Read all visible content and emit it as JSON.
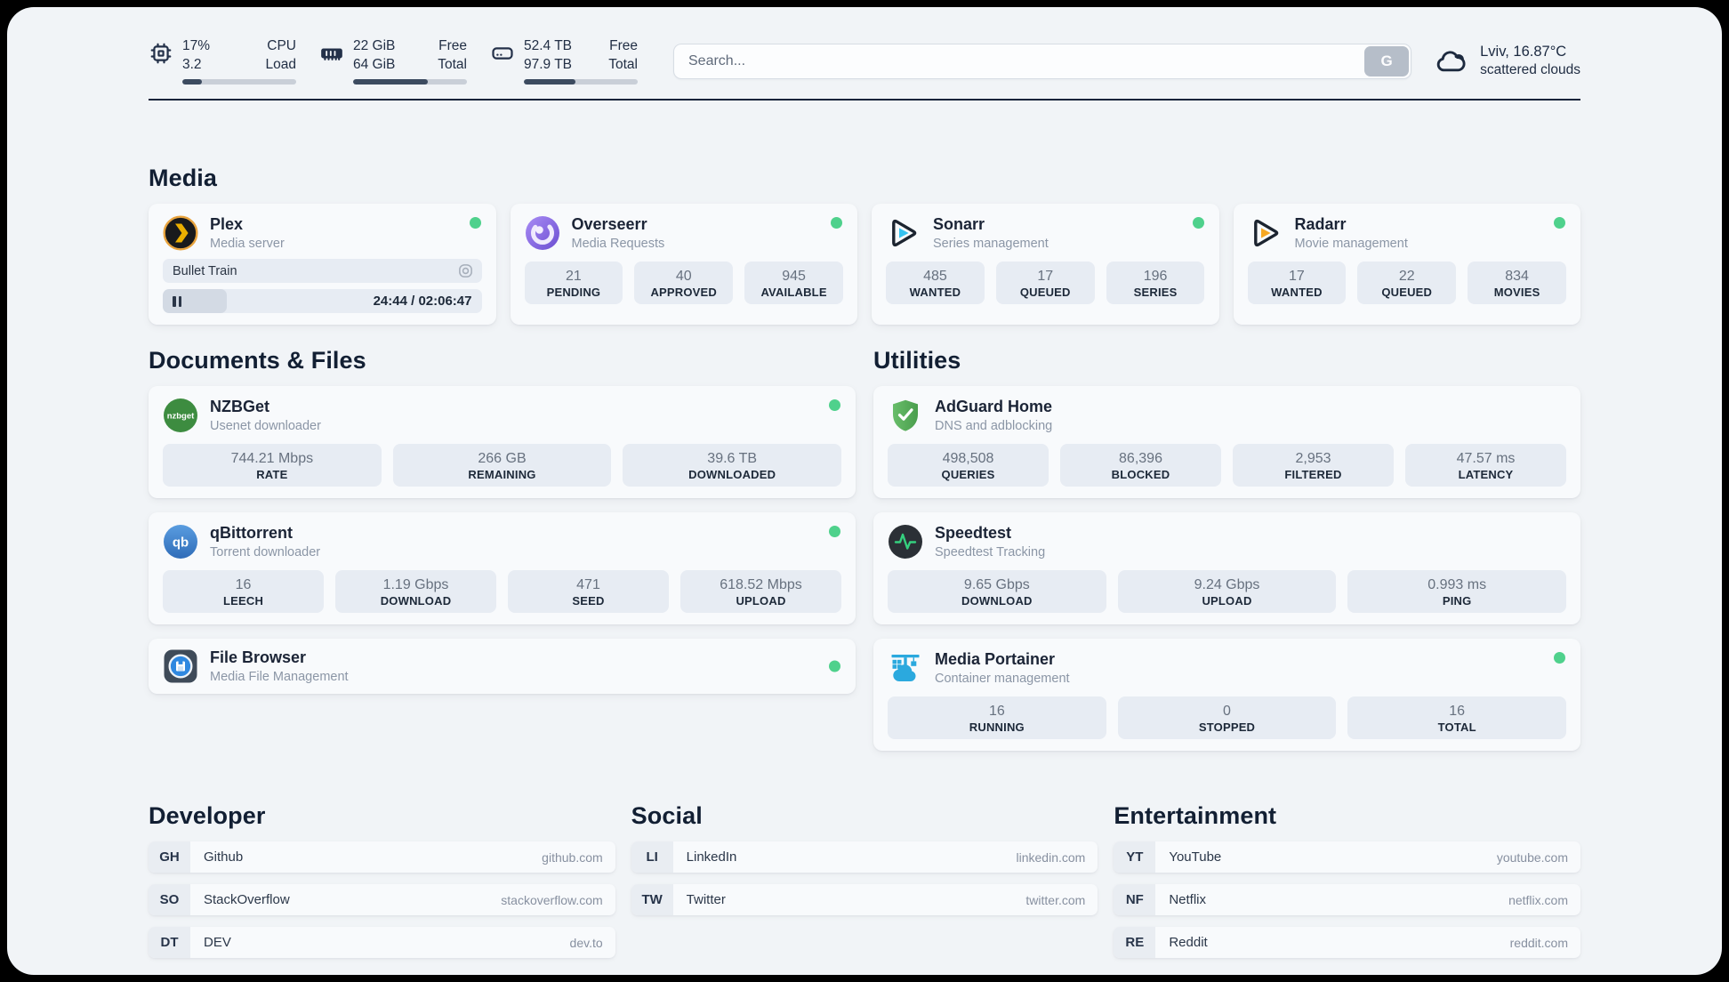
{
  "header": {
    "resources": [
      {
        "kind": "cpu",
        "val1": "17%",
        "lab1": "CPU",
        "val2": "3.2",
        "lab2": "Load",
        "progress": 17
      },
      {
        "kind": "memory",
        "val1": "22 GiB",
        "lab1": "Free",
        "val2": "64 GiB",
        "lab2": "Total",
        "progress": 66
      },
      {
        "kind": "disk",
        "val1": "52.4 TB",
        "lab1": "Free",
        "val2": "97.9 TB",
        "lab2": "Total",
        "progress": 45
      }
    ],
    "search": {
      "placeholder": "Search...",
      "button": "G"
    },
    "weather": {
      "line1": "Lviv, 16.87°C",
      "line2": "scattered clouds"
    }
  },
  "sections": {
    "media": "Media",
    "documents": "Documents & Files",
    "utilities": "Utilities",
    "developer": "Developer",
    "social": "Social",
    "entertainment": "Entertainment"
  },
  "services": {
    "plex": {
      "name": "Plex",
      "subtitle": "Media server",
      "online": true,
      "player": {
        "title": "Bullet Train",
        "time": "24:44 / 02:06:47",
        "progress": 20
      }
    },
    "overseerr": {
      "name": "Overseerr",
      "subtitle": "Media Requests",
      "online": true,
      "stats": [
        {
          "value": "21",
          "label": "PENDING"
        },
        {
          "value": "40",
          "label": "APPROVED"
        },
        {
          "value": "945",
          "label": "AVAILABLE"
        }
      ]
    },
    "sonarr": {
      "name": "Sonarr",
      "subtitle": "Series management",
      "online": true,
      "stats": [
        {
          "value": "485",
          "label": "WANTED"
        },
        {
          "value": "17",
          "label": "QUEUED"
        },
        {
          "value": "196",
          "label": "SERIES"
        }
      ]
    },
    "radarr": {
      "name": "Radarr",
      "subtitle": "Movie management",
      "online": true,
      "stats": [
        {
          "value": "17",
          "label": "WANTED"
        },
        {
          "value": "22",
          "label": "QUEUED"
        },
        {
          "value": "834",
          "label": "MOVIES"
        }
      ]
    },
    "nzbget": {
      "name": "NZBGet",
      "subtitle": "Usenet downloader",
      "online": true,
      "icon_text": "nzbget",
      "stats": [
        {
          "value": "744.21 Mbps",
          "label": "RATE"
        },
        {
          "value": "266 GB",
          "label": "REMAINING"
        },
        {
          "value": "39.6 TB",
          "label": "DOWNLOADED"
        }
      ]
    },
    "qbittorrent": {
      "name": "qBittorrent",
      "subtitle": "Torrent downloader",
      "online": true,
      "icon_text": "qb",
      "stats": [
        {
          "value": "16",
          "label": "LEECH"
        },
        {
          "value": "1.19 Gbps",
          "label": "DOWNLOAD"
        },
        {
          "value": "471",
          "label": "SEED"
        },
        {
          "value": "618.52 Mbps",
          "label": "UPLOAD"
        }
      ]
    },
    "filebrowser": {
      "name": "File Browser",
      "subtitle": "Media File Management",
      "online": true
    },
    "adguard": {
      "name": "AdGuard Home",
      "subtitle": "DNS and adblocking",
      "online": false,
      "stats": [
        {
          "value": "498,508",
          "label": "QUERIES"
        },
        {
          "value": "86,396",
          "label": "BLOCKED"
        },
        {
          "value": "2,953",
          "label": "FILTERED"
        },
        {
          "value": "47.57 ms",
          "label": "LATENCY"
        }
      ]
    },
    "speedtest": {
      "name": "Speedtest",
      "subtitle": "Speedtest Tracking",
      "online": false,
      "stats": [
        {
          "value": "9.65 Gbps",
          "label": "DOWNLOAD"
        },
        {
          "value": "9.24 Gbps",
          "label": "UPLOAD"
        },
        {
          "value": "0.993 ms",
          "label": "PING"
        }
      ]
    },
    "portainer": {
      "name": "Media Portainer",
      "subtitle": "Container management",
      "online": true,
      "stats": [
        {
          "value": "16",
          "label": "RUNNING"
        },
        {
          "value": "0",
          "label": "STOPPED"
        },
        {
          "value": "16",
          "label": "TOTAL"
        }
      ]
    }
  },
  "bookmarks": {
    "developer": [
      {
        "abbr": "GH",
        "name": "Github",
        "url": "github.com"
      },
      {
        "abbr": "SO",
        "name": "StackOverflow",
        "url": "stackoverflow.com"
      },
      {
        "abbr": "DT",
        "name": "DEV",
        "url": "dev.to"
      }
    ],
    "social": [
      {
        "abbr": "LI",
        "name": "LinkedIn",
        "url": "linkedin.com"
      },
      {
        "abbr": "TW",
        "name": "Twitter",
        "url": "twitter.com"
      }
    ],
    "entertainment": [
      {
        "abbr": "YT",
        "name": "YouTube",
        "url": "youtube.com"
      },
      {
        "abbr": "NF",
        "name": "Netflix",
        "url": "netflix.com"
      },
      {
        "abbr": "RE",
        "name": "Reddit",
        "url": "reddit.com"
      }
    ]
  },
  "colors": {
    "status_online": "#4fd18c",
    "page_background": "#f1f4f7",
    "text_dark": "#1d2939",
    "progress_fill": "#3c4b60"
  }
}
